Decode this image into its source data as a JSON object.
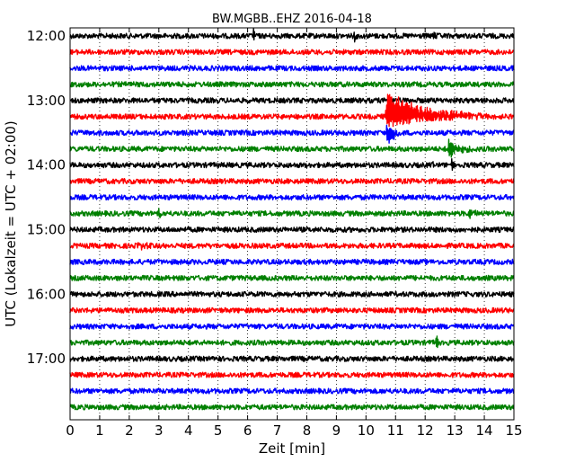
{
  "chart_data": {
    "type": "line",
    "title": "BW.MGBB..EHZ 2016-04-18",
    "xlabel": "Zeit  [min]",
    "ylabel": "UTC (Lokalzeit = UTC + 02:00)",
    "xlim": [
      0,
      15
    ],
    "x_ticks": [
      "0",
      "1",
      "2",
      "3",
      "4",
      "5",
      "6",
      "7",
      "8",
      "9",
      "10",
      "11",
      "12",
      "13",
      "14",
      "15"
    ],
    "y_ticks": [
      "12:00",
      "13:00",
      "14:00",
      "15:00",
      "16:00",
      "17:00"
    ],
    "grid": "vertical-dotted",
    "trace_interval_min": 15,
    "trace_colors": [
      "#000000",
      "#ff0000",
      "#0000ff",
      "#008000"
    ],
    "series": [
      {
        "start": "12:00",
        "color": "#000000",
        "events": [
          {
            "t": 6.2,
            "amp": 0.35
          },
          {
            "t": 9.6,
            "amp": 0.3
          },
          {
            "t": 12.3,
            "amp": 0.2
          }
        ]
      },
      {
        "start": "12:15",
        "color": "#ff0000",
        "events": []
      },
      {
        "start": "12:30",
        "color": "#0000ff",
        "events": []
      },
      {
        "start": "12:45",
        "color": "#008000",
        "events": []
      },
      {
        "start": "13:00",
        "color": "#000000",
        "events": []
      },
      {
        "start": "13:15",
        "color": "#ff0000",
        "events": [
          {
            "t": 10.7,
            "amp": 1.6,
            "coda": 3.5,
            "up": 1.6,
            "down": 0.6
          }
        ]
      },
      {
        "start": "13:30",
        "color": "#0000ff",
        "events": [
          {
            "t": 10.7,
            "amp": 0.6,
            "coda": 0.6,
            "up": 0.4,
            "down": 1.0
          }
        ]
      },
      {
        "start": "13:45",
        "color": "#008000",
        "events": [
          {
            "t": 12.8,
            "amp": 0.6,
            "coda": 0.8
          },
          {
            "t": 14.9,
            "amp": 0.3
          }
        ]
      },
      {
        "start": "14:00",
        "color": "#000000",
        "events": [
          {
            "t": 12.3,
            "amp": 0.3
          },
          {
            "t": 12.9,
            "amp": 0.35
          }
        ]
      },
      {
        "start": "14:15",
        "color": "#ff0000",
        "events": []
      },
      {
        "start": "14:30",
        "color": "#0000ff",
        "events": []
      },
      {
        "start": "14:45",
        "color": "#008000",
        "events": [
          {
            "t": 3.0,
            "amp": 0.3
          },
          {
            "t": 13.5,
            "amp": 0.35,
            "coda": 0.4
          }
        ]
      },
      {
        "start": "15:00",
        "color": "#000000",
        "events": []
      },
      {
        "start": "15:15",
        "color": "#ff0000",
        "events": [
          {
            "t": 2.3,
            "amp": 0.15,
            "coda": 0.8
          }
        ]
      },
      {
        "start": "15:30",
        "color": "#0000ff",
        "events": []
      },
      {
        "start": "15:45",
        "color": "#008000",
        "events": []
      },
      {
        "start": "16:00",
        "color": "#000000",
        "events": []
      },
      {
        "start": "16:15",
        "color": "#ff0000",
        "events": []
      },
      {
        "start": "16:30",
        "color": "#0000ff",
        "events": []
      },
      {
        "start": "16:45",
        "color": "#008000",
        "events": [
          {
            "t": 12.4,
            "amp": 0.5
          },
          {
            "t": 12.6,
            "amp": 0.35
          }
        ]
      },
      {
        "start": "17:00",
        "color": "#000000",
        "events": [
          {
            "t": 4.9,
            "amp": 0.15
          }
        ]
      },
      {
        "start": "17:15",
        "color": "#ff0000",
        "events": []
      },
      {
        "start": "17:30",
        "color": "#0000ff",
        "events": []
      },
      {
        "start": "17:45",
        "color": "#008000",
        "events": []
      }
    ]
  }
}
